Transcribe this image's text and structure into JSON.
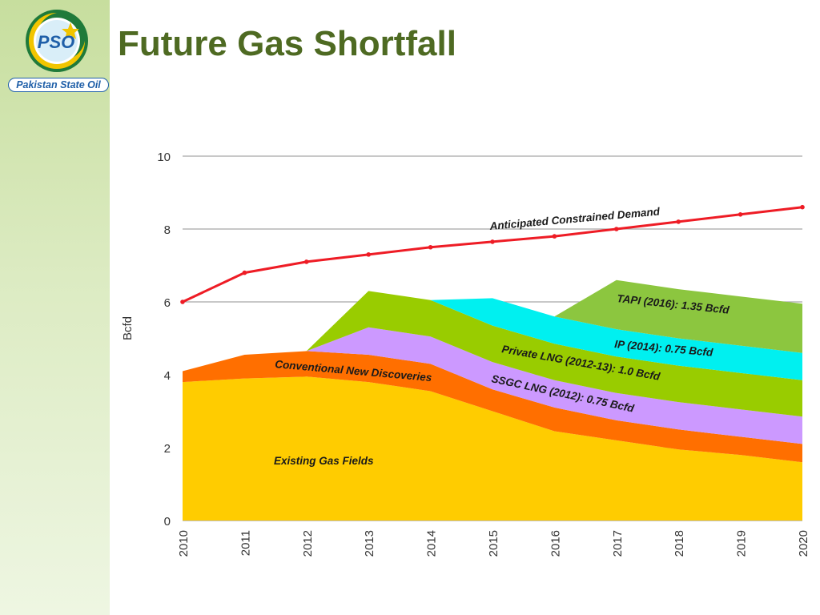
{
  "page": {
    "title": "Future Gas Shortfall",
    "logo_initials": "PSO",
    "logo_text": "Pakistan State Oil"
  },
  "colors": {
    "title": "#4e6a22",
    "existing": "#ffcc00",
    "conventional": "#ff6f00",
    "ssgc": "#cc99ff",
    "private": "#99cc00",
    "ip": "#00f0f0",
    "tapi": "#8cc63f",
    "demand": "#ee1c25"
  },
  "chart_data": {
    "type": "area",
    "ylabel": "Bcfd",
    "xlabel": "",
    "ylim": [
      0,
      10
    ],
    "yticks": [
      0,
      2,
      4,
      6,
      8,
      10
    ],
    "grid": true,
    "x": [
      "2010",
      "2011",
      "2012",
      "2013",
      "2014",
      "2015",
      "2016",
      "2017",
      "2018",
      "2019",
      "2020"
    ],
    "demand": {
      "name": "Anticipated Constrained Demand",
      "values": [
        6.0,
        6.8,
        7.1,
        7.3,
        7.5,
        7.65,
        7.8,
        8.0,
        8.2,
        8.4,
        8.6
      ]
    },
    "series": [
      {
        "key": "existing",
        "name": "Existing Gas Fields",
        "values": [
          3.8,
          3.9,
          3.95,
          3.8,
          3.55,
          3.0,
          2.45,
          2.2,
          1.95,
          1.8,
          1.6
        ]
      },
      {
        "key": "conventional",
        "name": "Conventional New Discoveries",
        "values": [
          0.3,
          0.65,
          0.7,
          0.75,
          0.75,
          0.6,
          0.65,
          0.55,
          0.55,
          0.5,
          0.5
        ]
      },
      {
        "key": "ssgc",
        "name": "SSGC LNG (2012): 0.75 Bcfd",
        "values": [
          0,
          0,
          0,
          0.75,
          0.75,
          0.75,
          0.75,
          0.75,
          0.75,
          0.75,
          0.75
        ]
      },
      {
        "key": "private",
        "name": "Private LNG (2012-13): 1.0 Bcfd",
        "values": [
          0,
          0,
          0,
          1.0,
          1.0,
          1.0,
          1.0,
          1.0,
          1.0,
          1.0,
          1.0
        ]
      },
      {
        "key": "ip",
        "name": "IP (2014): 0.75 Bcfd",
        "values": [
          0,
          0,
          0,
          0,
          0,
          0.75,
          0.75,
          0.75,
          0.75,
          0.75,
          0.75
        ]
      },
      {
        "key": "tapi",
        "name": "TAPI (2016): 1.35 Bcfd",
        "values": [
          0,
          0,
          0,
          0,
          0,
          0,
          0,
          1.35,
          1.35,
          1.35,
          1.35
        ]
      }
    ]
  }
}
